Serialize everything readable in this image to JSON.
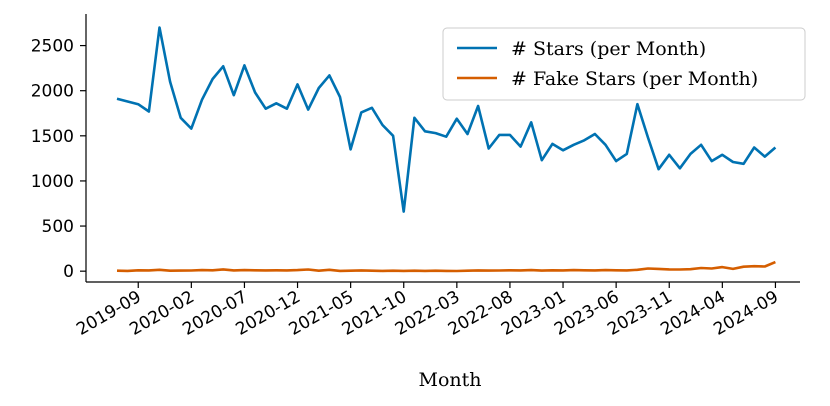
{
  "chart_data": {
    "type": "line",
    "title": "",
    "xlabel": "Month",
    "ylabel": "",
    "ylim": [
      -120,
      2850
    ],
    "yticks": [
      0,
      500,
      1000,
      1500,
      2000,
      2500
    ],
    "xticks": [
      "2019-09",
      "2020-02",
      "2020-07",
      "2020-12",
      "2021-05",
      "2021-10",
      "2022-03",
      "2022-08",
      "2023-01",
      "2023-06",
      "2023-11",
      "2024-04",
      "2024-09"
    ],
    "x_start": "2019-07",
    "legend_position": "top-right",
    "grid": false,
    "series": [
      {
        "name": "# Stars (per Month)",
        "color": "#0072B2",
        "values": [
          1910,
          1880,
          1850,
          1770,
          2700,
          2100,
          1700,
          1580,
          1900,
          2130,
          2270,
          1950,
          2280,
          1980,
          1800,
          1860,
          1800,
          2070,
          1790,
          2030,
          2170,
          1930,
          1350,
          1760,
          1810,
          1620,
          1500,
          660,
          1700,
          1550,
          1530,
          1490,
          1690,
          1520,
          1830,
          1360,
          1510,
          1510,
          1380,
          1650,
          1230,
          1410,
          1340,
          1400,
          1450,
          1520,
          1400,
          1220,
          1300,
          1850,
          1480,
          1130,
          1290,
          1140,
          1300,
          1400,
          1220,
          1290,
          1210,
          1190,
          1370,
          1270,
          1370
        ]
      },
      {
        "name": "# Fake Stars (per Month)",
        "color": "#D55E00",
        "values": [
          5,
          3,
          10,
          8,
          15,
          5,
          6,
          7,
          12,
          10,
          20,
          8,
          12,
          10,
          8,
          10,
          9,
          12,
          18,
          5,
          15,
          3,
          5,
          8,
          5,
          3,
          5,
          3,
          5,
          3,
          5,
          3,
          2,
          5,
          8,
          6,
          7,
          10,
          8,
          12,
          6,
          10,
          8,
          12,
          10,
          8,
          12,
          10,
          8,
          15,
          30,
          25,
          20,
          18,
          22,
          35,
          30,
          45,
          25,
          50,
          55,
          52,
          100
        ]
      }
    ]
  }
}
